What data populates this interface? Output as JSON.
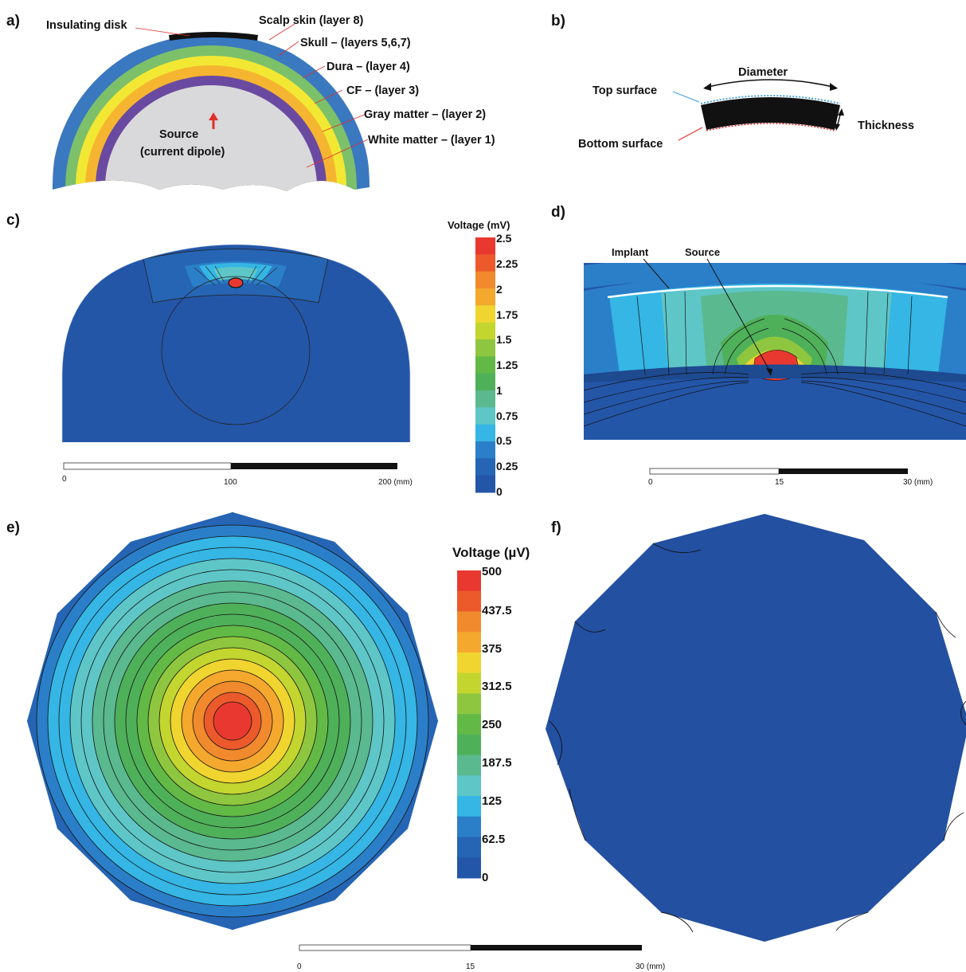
{
  "panels": {
    "a": "a)",
    "b": "b)",
    "c": "c)",
    "d": "d)",
    "e": "e)",
    "f": "f)"
  },
  "panel_a": {
    "insulating_disk": "Insulating disk",
    "scalp": "Scalp skin (layer 8)",
    "skull": "Skull – (layers 5,6,7)",
    "dura": "Dura – (layer 4)",
    "cf": "CF – (layer 3)",
    "gray": "Gray matter – (layer 2)",
    "white": "White matter – (layer 1)",
    "source_line1": "Source",
    "source_line2": "(current dipole)",
    "layer_colors": [
      "#3a78c0",
      "#7cc06a",
      "#f2e833",
      "#f6b530",
      "#6a4aa0",
      "#d9d9db"
    ]
  },
  "panel_b": {
    "diameter": "Diameter",
    "top_surface": "Top surface",
    "bottom_surface": "Bottom surface",
    "thickness": "Thickness"
  },
  "panel_c": {
    "scale_ticks": [
      "0",
      "100",
      "200 (mm)"
    ]
  },
  "panel_d": {
    "implant": "Implant",
    "source": "Source",
    "scale_ticks": [
      "0",
      "15",
      "30 (mm)"
    ]
  },
  "panel_e": {
    "scale_ticks": [
      "0",
      "15",
      "30 (mm)"
    ]
  },
  "colorbar_mv": {
    "title": "Voltage (mV)",
    "ticks": [
      "2.5",
      "2.25",
      "2",
      "1.75",
      "1.5",
      "1.25",
      "1",
      "0.75",
      "0.5",
      "0.25",
      "0"
    ]
  },
  "colorbar_uv": {
    "title": "Voltage (µV)",
    "ticks": [
      "500",
      "437.5",
      "375",
      "312.5",
      "250",
      "187.5",
      "125",
      "62.5",
      "0"
    ]
  },
  "palette": [
    "#2456a8",
    "#2565b4",
    "#2b7fc8",
    "#35b6e4",
    "#5ec6c7",
    "#5ab98e",
    "#4fb05a",
    "#62b946",
    "#8fc63f",
    "#c3d52f",
    "#f0d530",
    "#f4a82e",
    "#f08a2d",
    "#ec5a2c",
    "#e8382f"
  ]
}
